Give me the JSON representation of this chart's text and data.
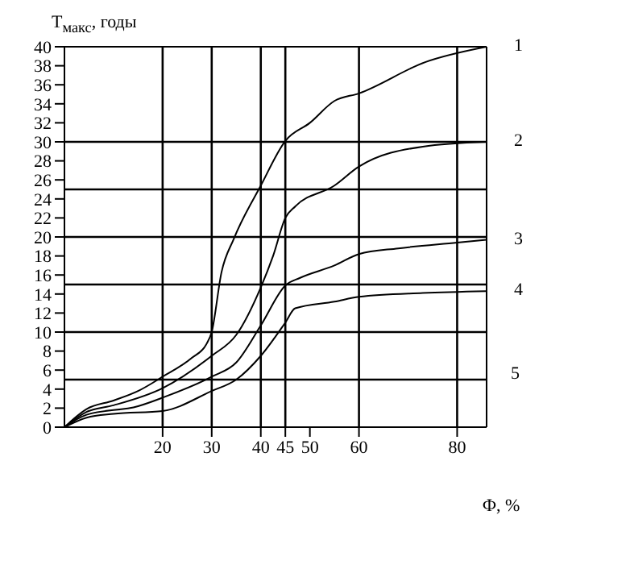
{
  "chart_data": {
    "type": "line",
    "ylabel": "T$_{макс}$, годы",
    "xlabel": "Ф, %",
    "x": [
      0,
      4.5,
      10,
      15,
      20,
      26,
      29,
      30,
      32,
      34.5,
      40,
      45,
      50,
      55,
      60,
      73.6,
      86
    ],
    "series": [
      {
        "name": "1",
        "color": "#000000",
        "values": [
          0,
          1.9,
          2.8,
          3.8,
          5.3,
          7.3,
          8.8,
          10,
          16.3,
          19.8,
          25.4,
          30.1,
          32,
          34.3,
          35.1,
          38.4,
          40
        ]
      },
      {
        "name": "2",
        "color": "#000000",
        "x": [
          0,
          4.5,
          10,
          20,
          30,
          35,
          40,
          42.5,
          45,
          47,
          55,
          60,
          73,
          86
        ],
        "values": [
          0,
          1.6,
          2.3,
          4.1,
          7.5,
          9.7,
          14.7,
          18,
          22,
          23.2,
          25.4,
          27.4,
          29.5,
          30
        ]
      },
      {
        "name": "3",
        "color": "#000000",
        "x": [
          0,
          4.5,
          15,
          20,
          30,
          35,
          40,
          45,
          48,
          55,
          60,
          68,
          80,
          86
        ],
        "values": [
          0,
          1.3,
          2.2,
          3.1,
          5.3,
          6.8,
          10.7,
          14.9,
          15.7,
          17,
          18.2,
          18.8,
          19.4,
          19.7
        ]
      },
      {
        "name": "4",
        "color": "#000000",
        "x": [
          0,
          4.5,
          10,
          20,
          30,
          35,
          40,
          45,
          47,
          55,
          60,
          73,
          86
        ],
        "values": [
          0,
          1,
          1.4,
          1.7,
          3.8,
          5,
          7.5,
          11,
          12.5,
          13.2,
          13.7,
          14.1,
          14.3
        ]
      }
    ],
    "annotations": [
      "5"
    ],
    "xlim": [
      0,
      86
    ],
    "xticks": [
      20,
      30,
      40,
      45,
      50,
      60,
      80
    ],
    "ylim": [
      0,
      40
    ],
    "yticks": [
      0,
      2,
      4,
      6,
      8,
      10,
      12,
      14,
      16,
      18,
      20,
      22,
      24,
      26,
      28,
      30,
      32,
      34,
      36,
      38,
      40
    ],
    "ref_lines": [
      {
        "axis": "y",
        "value": 5,
        "color": "#000000"
      },
      {
        "axis": "y",
        "value": 10,
        "color": "#000000"
      },
      {
        "axis": "y",
        "value": 15,
        "color": "#000000"
      },
      {
        "axis": "y",
        "value": 20,
        "color": "#000000"
      },
      {
        "axis": "y",
        "value": 25,
        "color": "#000000"
      },
      {
        "axis": "y",
        "value": 30,
        "color": "#000000"
      },
      {
        "axis": "x",
        "value": 20,
        "color": "#000000"
      },
      {
        "axis": "x",
        "value": 30,
        "color": "#000000"
      },
      {
        "axis": "x",
        "value": 40,
        "color": "#000000"
      },
      {
        "axis": "x",
        "value": 45,
        "color": "#000000"
      },
      {
        "axis": "x",
        "value": 60,
        "color": "#000000"
      },
      {
        "axis": "x",
        "value": 80,
        "color": "#000000"
      }
    ],
    "grid": false,
    "marker": "none",
    "line_style": "solid"
  }
}
